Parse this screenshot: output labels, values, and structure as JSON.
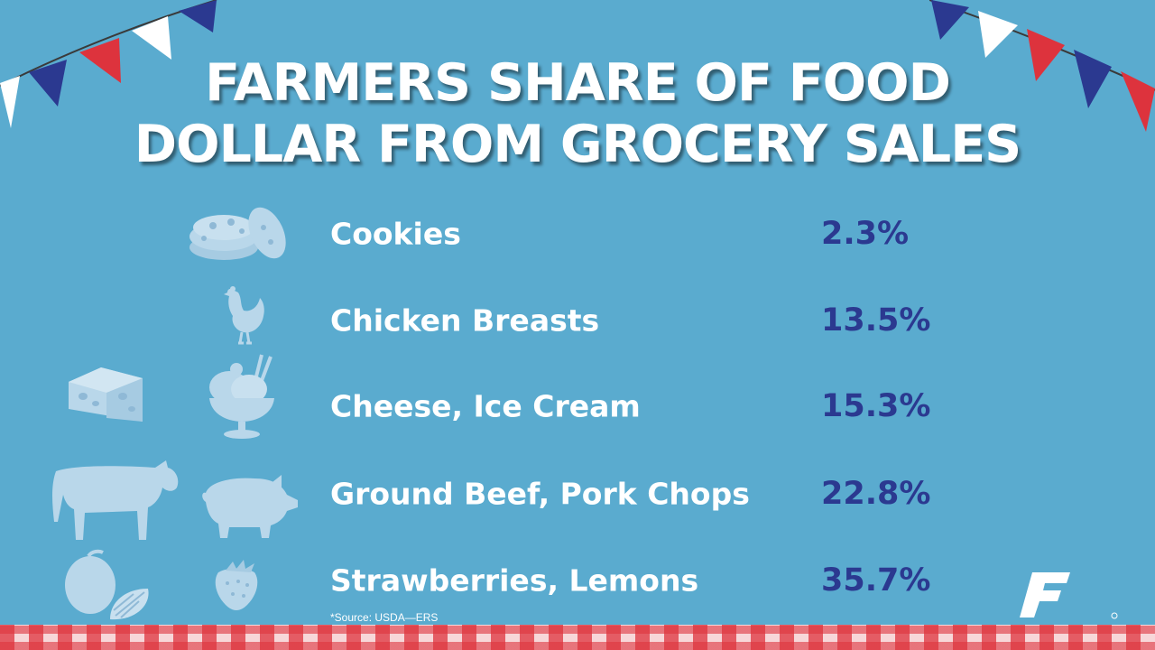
{
  "header": {
    "title_line1": "FARMERS SHARE OF FOOD",
    "title_line2": "DOLLAR FROM GROCERY SALES"
  },
  "items": [
    {
      "label": "Cookies",
      "value": "2.3%",
      "icons": [
        "cookies-icon"
      ]
    },
    {
      "label": "Chicken Breasts",
      "value": "13.5%",
      "icons": [
        "chicken-icon"
      ]
    },
    {
      "label": "Cheese, Ice Cream",
      "value": "15.3%",
      "icons": [
        "cheese-icon",
        "ice-cream-icon"
      ]
    },
    {
      "label": "Ground Beef, Pork Chops",
      "value": "22.8%",
      "icons": [
        "cow-icon",
        "pig-icon"
      ]
    },
    {
      "label": "Strawberries, Lemons",
      "value": "35.7%",
      "icons": [
        "lemon-icon",
        "strawberry-icon"
      ]
    }
  ],
  "footer": {
    "source": "*Source: USDA—ERS"
  },
  "colors": {
    "background": "#5aabcf",
    "value_text": "#2b3990",
    "label_text": "#ffffff",
    "icon_fill": "#b9d7ea",
    "flag_red": "#dd333d",
    "flag_blue": "#2b3990",
    "flag_white": "#ffffff"
  }
}
